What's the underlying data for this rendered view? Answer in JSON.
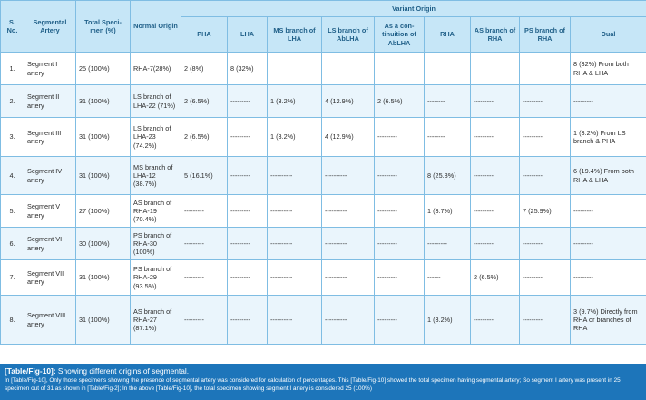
{
  "table": {
    "headers": {
      "no": "S. No.",
      "segmental_artery": "Segmental Artery",
      "total": "Total Speci-men (%)",
      "normal": "Normal Origin",
      "variant_group": "Variant Origin",
      "variants": [
        "PHA",
        "LHA",
        "MS branch of LHA",
        "LS branch of AbLHA",
        "As a con-tinuition of AbLHA",
        "RHA",
        "AS branch of RHA",
        "PS branch of RHA",
        "Dual"
      ]
    },
    "rows": [
      {
        "no": "1.",
        "segment": "Segment I artery",
        "total": "25 (100%)",
        "normal": "RHA-7(28%)",
        "cells": [
          "2 (8%)",
          "8 (32%)",
          "",
          "",
          "",
          "",
          "",
          "",
          "8 (32%) From both RHA & LHA"
        ]
      },
      {
        "no": "2.",
        "segment": "Segment II artery",
        "total": "31 (100%)",
        "normal": "LS branch of LHA-22 (71%)",
        "cells": [
          "2 (6.5%)",
          "---------",
          "1 (3.2%)",
          "4 (12.9%)",
          "2 (6.5%)",
          "--------",
          "---------",
          "---------",
          "---------"
        ]
      },
      {
        "no": "3.",
        "segment": "Segment III artery",
        "total": "31 (100%)",
        "normal": "LS branch of LHA-23 (74.2%)",
        "cells": [
          "2 (6.5%)",
          "---------",
          "1 (3.2%)",
          "4 (12.9%)",
          "---------",
          "--------",
          "---------",
          "---------",
          "1 (3.2%) From LS branch & PHA"
        ]
      },
      {
        "no": "4.",
        "segment": "Segment IV artery",
        "total": "31 (100%)",
        "normal": "MS branch of LHA-12 (38.7%)",
        "cells": [
          "5 (16.1%)",
          "---------",
          "----------",
          "----------",
          "---------",
          "8 (25.8%)",
          "---------",
          "---------",
          "6 (19.4%) From both RHA & LHA"
        ]
      },
      {
        "no": "5.",
        "segment": "Segment V artery",
        "total": "27 (100%)",
        "normal": "AS branch of RHA-19 (70.4%)",
        "cells": [
          "---------",
          "---------",
          "----------",
          "----------",
          "---------",
          "1 (3.7%)",
          "---------",
          "7 (25.9%)",
          "---------"
        ]
      },
      {
        "no": "6.",
        "segment": "Segment VI artery",
        "total": "30 (100%)",
        "normal": "PS branch of RHA-30 (100%)",
        "cells": [
          "---------",
          "---------",
          "----------",
          "----------",
          "---------",
          "---------",
          "---------",
          "---------",
          "---------"
        ]
      },
      {
        "no": "7.",
        "segment": "Segment VII artery",
        "total": "31 (100%)",
        "normal": "PS branch of RHA-29 (93.5%)",
        "cells": [
          "---------",
          "---------",
          "----------",
          "----------",
          "---------",
          "------",
          "2 (6.5%)",
          "---------",
          "---------"
        ]
      },
      {
        "no": "8.",
        "segment": "Segment VIII artery",
        "total": "31 (100%)",
        "normal": "AS branch of RHA-27 (87.1%)",
        "cells": [
          "---------",
          "---------",
          "----------",
          "----------",
          "---------",
          "1 (3.2%)",
          "---------",
          "---------",
          "3 (9.7%) Directly from RHA or branches of RHA"
        ]
      }
    ]
  },
  "caption": {
    "label": "[Table/Fig-10]:",
    "title": " Showing different origins of segmental.",
    "text": "In [Table/Fig-10], Only those specimens showing the presence of segmental artery was considered for calculation of percentages. This [Table/Fig-10] showed the total specimen having segmental artery; So segment I artery was present in 25 specimen out of 31 as shown in [Table/Fig-2]; In the above [Table/Fig-10], the total specimen showing segment I artery is considered 25 (100%)"
  },
  "colors": {
    "header_bg": "#c6e6f7",
    "header_text": "#1f5f88",
    "border": "#7fbde3",
    "alt_row": "#eaf5fc",
    "caption_bg": "#1d75ba"
  }
}
